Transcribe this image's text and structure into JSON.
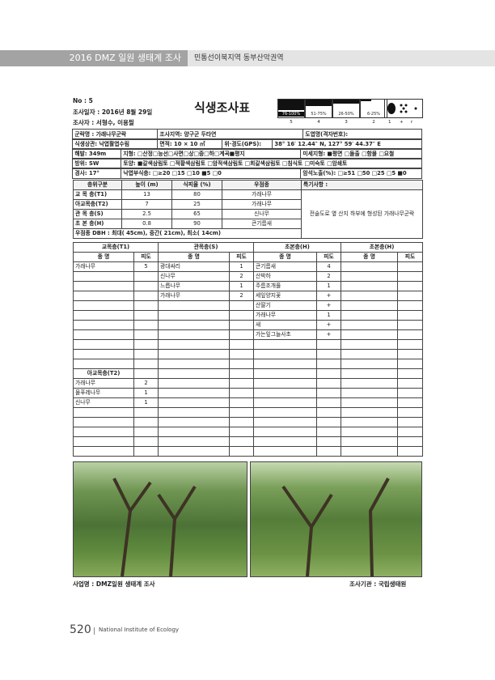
{
  "header": {
    "section": "2016 DMZ 일원 생태계 조사",
    "region": "민통선이북지역 동부산악권역"
  },
  "form": {
    "no": "No : 5",
    "date": "조사일자 : 2016년 8월 29일",
    "surveyors": "조사자 : 서형수, 이용필",
    "title": "식생조사표",
    "cover_scale": [
      {
        "range": "76-100%",
        "class": "5"
      },
      {
        "range": "51-75%",
        "class": "4"
      },
      {
        "range": "26-50%",
        "class": "3"
      },
      {
        "range": "6-25%",
        "class": "2"
      }
    ],
    "cover_extra": [
      "1",
      "+",
      "r"
    ]
  },
  "site_info": {
    "rows": [
      [
        "군락명 : 가래나무군락",
        "조사지역: 양구군 두타연",
        "도엽명(격자번호):"
      ],
      [
        "식생상관: 낙엽활엽수림",
        "면적: 10 × 10 ㎡",
        "위·경도(GPS):",
        "38° 16′ 12.44″ N,  127° 59′ 44.37″ E"
      ],
      [
        "해발: 349m",
        "지형: □산정□능선□사면□상□중□하□계곡■평지",
        "미세지형: ■평면 □돌출 □함몰 □요철"
      ],
      [
        "방위: SW",
        "토양: ■갈색삼림토 □적황색삼림토 □암적색삼림토 □회갈색삼림토 □침식토 □미숙토 □암쇄토"
      ],
      [
        "경사: 17°",
        "낙엽부식층: □≥20 □15 □10 ■5 □0",
        "암석노출(%): □≥51 □50 □25 □5 ■0"
      ]
    ]
  },
  "layers": {
    "header": [
      "층위구분",
      "높이 (m)",
      "식피율 (%)",
      "우점종",
      "특기사항 :"
    ],
    "rows": [
      [
        "교 목 층(T1)",
        13,
        80,
        "가래나무"
      ],
      [
        "아교목층(T2)",
        7,
        25,
        "가래나무"
      ],
      [
        "관 목 층(S)",
        2.5,
        65,
        "신나무"
      ],
      [
        "초 본 층(H)",
        0.8,
        90,
        "큰기름새"
      ]
    ],
    "dbh": "우점종 DBH : 최대( 45cm), 중간( 21cm), 최소( 14cm)",
    "note": "전술도로 옆 산지 하부에 형성된 가래나무군락"
  },
  "species": {
    "headers": [
      "교목층(T1)",
      "관목층(S)",
      "초본층(H)",
      "초본층(H)"
    ],
    "subheaders": [
      "종 명",
      "피도",
      "종 명",
      "피도",
      "종 명",
      "피도",
      "종 명",
      "피도"
    ],
    "rows": [
      [
        "가래나무",
        5,
        "광대싸리",
        1,
        "큰기름새",
        4,
        null,
        null
      ],
      [
        null,
        null,
        "신나무",
        2,
        "산박하",
        2,
        null,
        null
      ],
      [
        null,
        null,
        "느릅나무",
        1,
        "주름조개풀",
        1,
        null,
        null
      ],
      [
        null,
        null,
        "가래나무",
        2,
        "세잎양지꽃",
        "+",
        null,
        null
      ],
      [
        null,
        null,
        null,
        null,
        "산딸기",
        "+",
        null,
        null
      ],
      [
        null,
        null,
        null,
        null,
        "가래나무",
        1,
        null,
        null
      ],
      [
        null,
        null,
        null,
        null,
        "새",
        "+",
        null,
        null
      ],
      [
        null,
        null,
        null,
        null,
        "가는잎그늘사초",
        "+",
        null,
        null
      ],
      [
        null,
        null,
        null,
        null,
        null,
        null,
        null,
        null
      ],
      [
        null,
        null,
        null,
        null,
        null,
        null,
        null,
        null
      ],
      [
        null,
        null,
        null,
        null,
        null,
        null,
        null,
        null
      ],
      [
        "아교목층(T2)",
        null,
        null,
        null,
        null,
        null,
        null,
        null
      ],
      [
        "가래나무",
        2,
        null,
        null,
        null,
        null,
        null,
        null
      ],
      [
        "물푸레나무",
        1,
        null,
        null,
        null,
        null,
        null,
        null
      ],
      [
        "신나무",
        1,
        null,
        null,
        null,
        null,
        null,
        null
      ],
      [
        null,
        null,
        null,
        null,
        null,
        null,
        null,
        null
      ],
      [
        null,
        null,
        null,
        null,
        null,
        null,
        null,
        null
      ],
      [
        null,
        null,
        null,
        null,
        null,
        null,
        null,
        null
      ],
      [
        null,
        null,
        null,
        null,
        null,
        null,
        null,
        null
      ],
      [
        null,
        null,
        null,
        null,
        null,
        null,
        null,
        null
      ]
    ]
  },
  "footer": {
    "project": "사업명 : DMZ일원 생태계 조사",
    "agency": "조사기관 : 국립생태원"
  },
  "page": {
    "number": "520",
    "publisher": "National Institute of Ecology"
  }
}
